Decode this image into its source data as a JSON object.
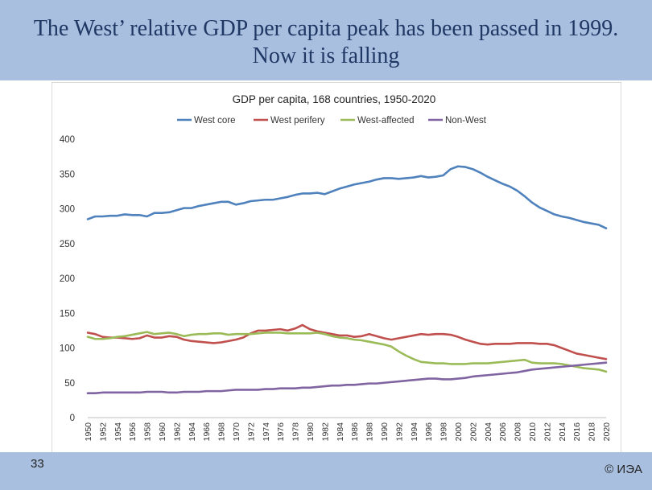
{
  "slide": {
    "title_line1": "The West’ relative GDP per capita peak has been passed in 1999.",
    "title_line2": "Now it is falling",
    "page_number": "33",
    "copyright": "© ИЭА",
    "header_color": "#a9bfe0",
    "title_color": "#1f3864"
  },
  "chart_data": {
    "type": "line",
    "title": "GDP per capita, 168 countries, 1950-2020",
    "xlabel": "",
    "ylabel": "",
    "x": [
      1950,
      1951,
      1952,
      1953,
      1954,
      1955,
      1956,
      1957,
      1958,
      1959,
      1960,
      1961,
      1962,
      1963,
      1964,
      1965,
      1966,
      1967,
      1968,
      1969,
      1970,
      1971,
      1972,
      1973,
      1974,
      1975,
      1976,
      1977,
      1978,
      1979,
      1980,
      1981,
      1982,
      1983,
      1984,
      1985,
      1986,
      1987,
      1988,
      1989,
      1990,
      1991,
      1992,
      1993,
      1994,
      1995,
      1996,
      1997,
      1998,
      1999,
      2000,
      2001,
      2002,
      2003,
      2004,
      2005,
      2006,
      2007,
      2008,
      2009,
      2010,
      2011,
      2012,
      2013,
      2014,
      2015,
      2016,
      2017,
      2018,
      2019,
      2020
    ],
    "x_tick_labels": [
      "1950",
      "1952",
      "1954",
      "1956",
      "1958",
      "1960",
      "1962",
      "1964",
      "1966",
      "1968",
      "1970",
      "1972",
      "1974",
      "1976",
      "1978",
      "1980",
      "1982",
      "1984",
      "1986",
      "1988",
      "1990",
      "1992",
      "1994",
      "1996",
      "1998",
      "2000",
      "2002",
      "2004",
      "2006",
      "2008",
      "2010",
      "2012",
      "2014",
      "2016",
      "2018",
      "2020"
    ],
    "ylim": [
      0,
      400
    ],
    "y_ticks": [
      "0",
      "50",
      "100",
      "150",
      "200",
      "250",
      "300",
      "350",
      "400"
    ],
    "legend_position": "top",
    "grid": false,
    "series": [
      {
        "name": "West core",
        "color": "#4f81bd",
        "values": [
          285,
          289,
          289,
          290,
          290,
          292,
          291,
          291,
          289,
          294,
          294,
          295,
          298,
          301,
          301,
          304,
          306,
          308,
          310,
          310,
          306,
          308,
          311,
          312,
          313,
          313,
          315,
          317,
          320,
          322,
          322,
          323,
          321,
          325,
          329,
          332,
          335,
          337,
          339,
          342,
          344,
          344,
          343,
          344,
          345,
          347,
          345,
          346,
          348,
          357,
          361,
          360,
          357,
          352,
          346,
          341,
          336,
          332,
          326,
          318,
          309,
          302,
          297,
          292,
          289,
          287,
          284,
          281,
          279,
          277,
          272
        ]
      },
      {
        "name": "West perifery",
        "color": "#c0504d",
        "values": [
          122,
          120,
          116,
          115,
          115,
          114,
          113,
          114,
          118,
          115,
          115,
          117,
          116,
          112,
          110,
          109,
          108,
          107,
          108,
          110,
          112,
          115,
          121,
          125,
          125,
          126,
          127,
          125,
          128,
          133,
          127,
          124,
          122,
          120,
          118,
          118,
          116,
          117,
          120,
          117,
          114,
          112,
          114,
          116,
          118,
          120,
          119,
          120,
          120,
          119,
          116,
          112,
          109,
          106,
          105,
          106,
          106,
          106,
          107,
          107,
          107,
          106,
          106,
          104,
          100,
          96,
          92,
          90,
          88,
          86,
          84
        ]
      },
      {
        "name": "West-affected",
        "color": "#9bbb59",
        "values": [
          116,
          113,
          113,
          114,
          116,
          117,
          119,
          121,
          123,
          120,
          121,
          122,
          120,
          117,
          119,
          120,
          120,
          121,
          121,
          119,
          120,
          120,
          120,
          121,
          122,
          122,
          122,
          121,
          121,
          121,
          121,
          122,
          120,
          117,
          115,
          114,
          112,
          111,
          109,
          107,
          105,
          102,
          95,
          89,
          84,
          80,
          79,
          78,
          78,
          77,
          77,
          77,
          78,
          78,
          78,
          79,
          80,
          81,
          82,
          83,
          79,
          78,
          78,
          78,
          77,
          75,
          73,
          71,
          70,
          69,
          66
        ]
      },
      {
        "name": "Non-West",
        "color": "#8064a2",
        "values": [
          35,
          35,
          36,
          36,
          36,
          36,
          36,
          36,
          37,
          37,
          37,
          36,
          36,
          37,
          37,
          37,
          38,
          38,
          38,
          39,
          40,
          40,
          40,
          40,
          41,
          41,
          42,
          42,
          42,
          43,
          43,
          44,
          45,
          46,
          46,
          47,
          47,
          48,
          49,
          49,
          50,
          51,
          52,
          53,
          54,
          55,
          56,
          56,
          55,
          55,
          56,
          57,
          59,
          60,
          61,
          62,
          63,
          64,
          65,
          67,
          69,
          70,
          71,
          72,
          73,
          74,
          75,
          76,
          77,
          78,
          79
        ]
      }
    ]
  }
}
